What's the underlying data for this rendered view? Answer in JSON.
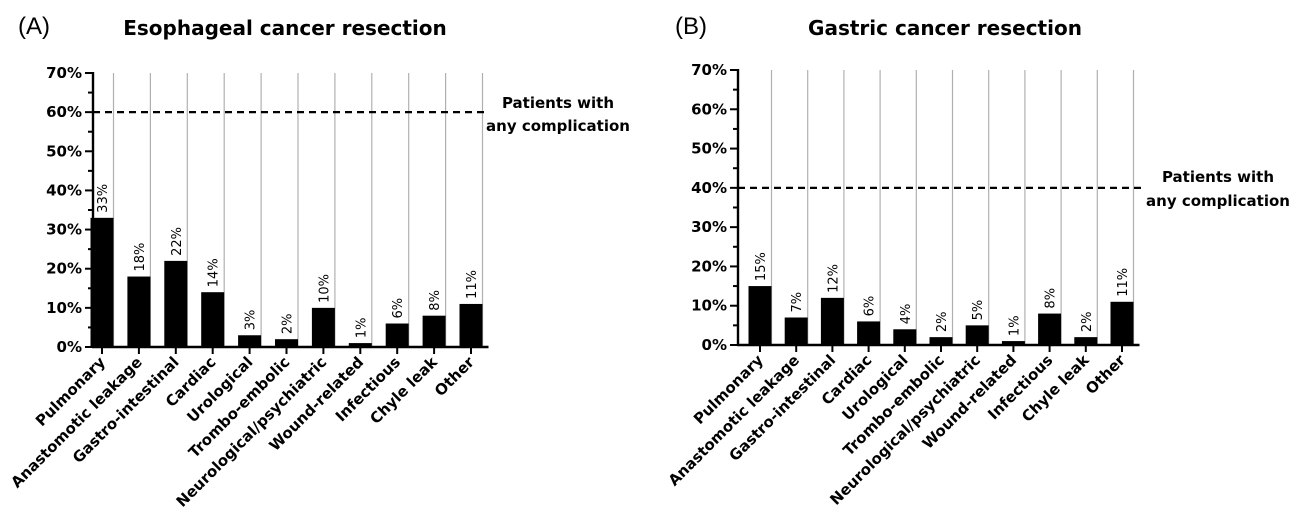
{
  "chart_data": [
    {
      "type": "bar",
      "panel": "(A)",
      "title": "Esophageal cancer resection",
      "categories": [
        "Pulmonary",
        "Anastomotic leakage",
        "Gastro-intestinal",
        "Cardiac",
        "Urological",
        "Trombo-embolic",
        "Neurological/psychiatric",
        "Wound-related",
        "Infectious",
        "Chyle leak",
        "Other"
      ],
      "values": [
        33,
        18,
        22,
        14,
        3,
        2,
        10,
        1,
        6,
        8,
        11
      ],
      "data_labels": [
        "33%",
        "18%",
        "22%",
        "14%",
        "3%",
        "2%",
        "10%",
        "1%",
        "6%",
        "8%",
        "11%"
      ],
      "ylim": [
        0,
        70
      ],
      "yticks": [
        0,
        10,
        20,
        30,
        40,
        50,
        60,
        70
      ],
      "ytick_labels": [
        "0%",
        "10%",
        "20%",
        "30%",
        "40%",
        "50%",
        "60%",
        "70%"
      ],
      "reference_line": {
        "value": 60,
        "label_lines": [
          "Patients with",
          "any complication"
        ]
      },
      "bar_color": "#000000",
      "column_color": "#b0b0b0"
    },
    {
      "type": "bar",
      "panel": "(B)",
      "title": "Gastric cancer resection",
      "categories": [
        "Pulmonary",
        "Anastomotic leakage",
        "Gastro-intestinal",
        "Cardiac",
        "Urological",
        "Trombo-embolic",
        "Neurological/psychiatric",
        "Wound-related",
        "Infectious",
        "Chyle leak",
        "Other"
      ],
      "values": [
        15,
        7,
        12,
        6,
        4,
        2,
        5,
        1,
        8,
        2,
        11
      ],
      "data_labels": [
        "15%",
        "7%",
        "12%",
        "6%",
        "4%",
        "2%",
        "5%",
        "1%",
        "8%",
        "2%",
        "11%"
      ],
      "ylim": [
        0,
        70
      ],
      "yticks": [
        0,
        10,
        20,
        30,
        40,
        50,
        60,
        70
      ],
      "ytick_labels": [
        "0%",
        "10%",
        "20%",
        "30%",
        "40%",
        "50%",
        "60%",
        "70%"
      ],
      "reference_line": {
        "value": 40,
        "label_lines": [
          "Patients with",
          "any complication"
        ]
      },
      "bar_color": "#000000",
      "column_color": "#b0b0b0"
    }
  ]
}
